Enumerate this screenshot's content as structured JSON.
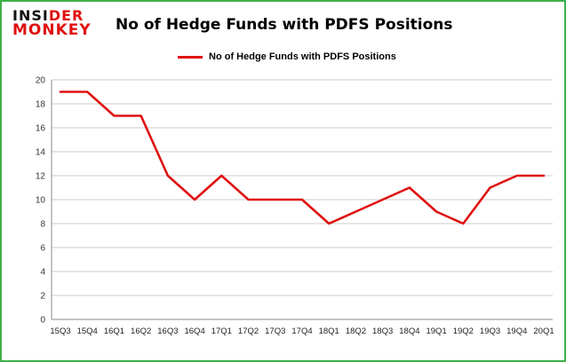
{
  "header": {
    "logo_line1_a": "INSI",
    "logo_line1_b": "DER",
    "logo_line2": "MONKEY",
    "title": "No of Hedge Funds with PDFS Positions"
  },
  "legend": {
    "label": "No of Hedge Funds with PDFS Positions"
  },
  "chart_data": {
    "type": "line",
    "title": "No of Hedge Funds with PDFS Positions",
    "categories": [
      "15Q3",
      "15Q4",
      "16Q1",
      "16Q2",
      "16Q3",
      "16Q4",
      "17Q1",
      "17Q2",
      "17Q3",
      "17Q4",
      "18Q1",
      "18Q2",
      "18Q3",
      "18Q4",
      "19Q1",
      "19Q2",
      "19Q3",
      "19Q4",
      "20Q1"
    ],
    "values": [
      19,
      19,
      17,
      17,
      12,
      10,
      12,
      10,
      10,
      10,
      8,
      9,
      10,
      11,
      9,
      8,
      11,
      12,
      12
    ],
    "xlabel": "",
    "ylabel": "",
    "ylim": [
      0,
      20
    ],
    "yticks": [
      0,
      2,
      4,
      6,
      8,
      10,
      12,
      14,
      16,
      18,
      20
    ],
    "grid": true,
    "legend_position": "top",
    "line_color": "#e01010"
  },
  "colors": {
    "border": "#3faf4b",
    "line": "#e01010",
    "logo_red": "#e01010",
    "grid": "#cccccc",
    "axis": "#888888"
  }
}
